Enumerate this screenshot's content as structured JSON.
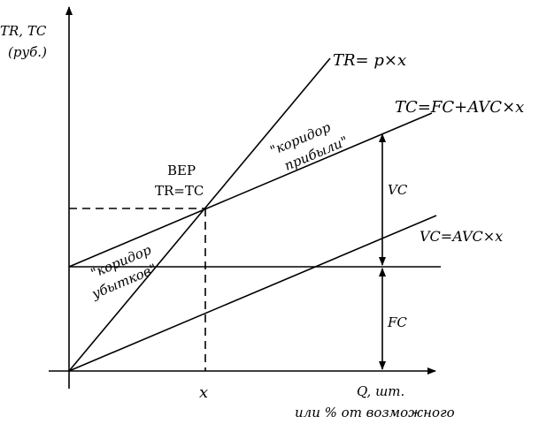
{
  "axes": {
    "y_label_line1": "TR, TC",
    "y_label_line2": "(руб.)",
    "x_label_line1": "Q, шт.",
    "x_label_line2": "или % от возможного",
    "x_point_label": "x"
  },
  "lines": {
    "tr": "TR= p×x",
    "tc": "TC=FC+AVC×x",
    "vc": "VC=AVC×x"
  },
  "bep": {
    "title": "BEP",
    "formula": "TR=TC"
  },
  "corridors": {
    "profit_line1": "\"коридор",
    "profit_line2": "прибыли\"",
    "loss_line1": "\"коридор",
    "loss_line2": "убытков\""
  },
  "measures": {
    "vc": "VC",
    "fc": "FC"
  }
}
